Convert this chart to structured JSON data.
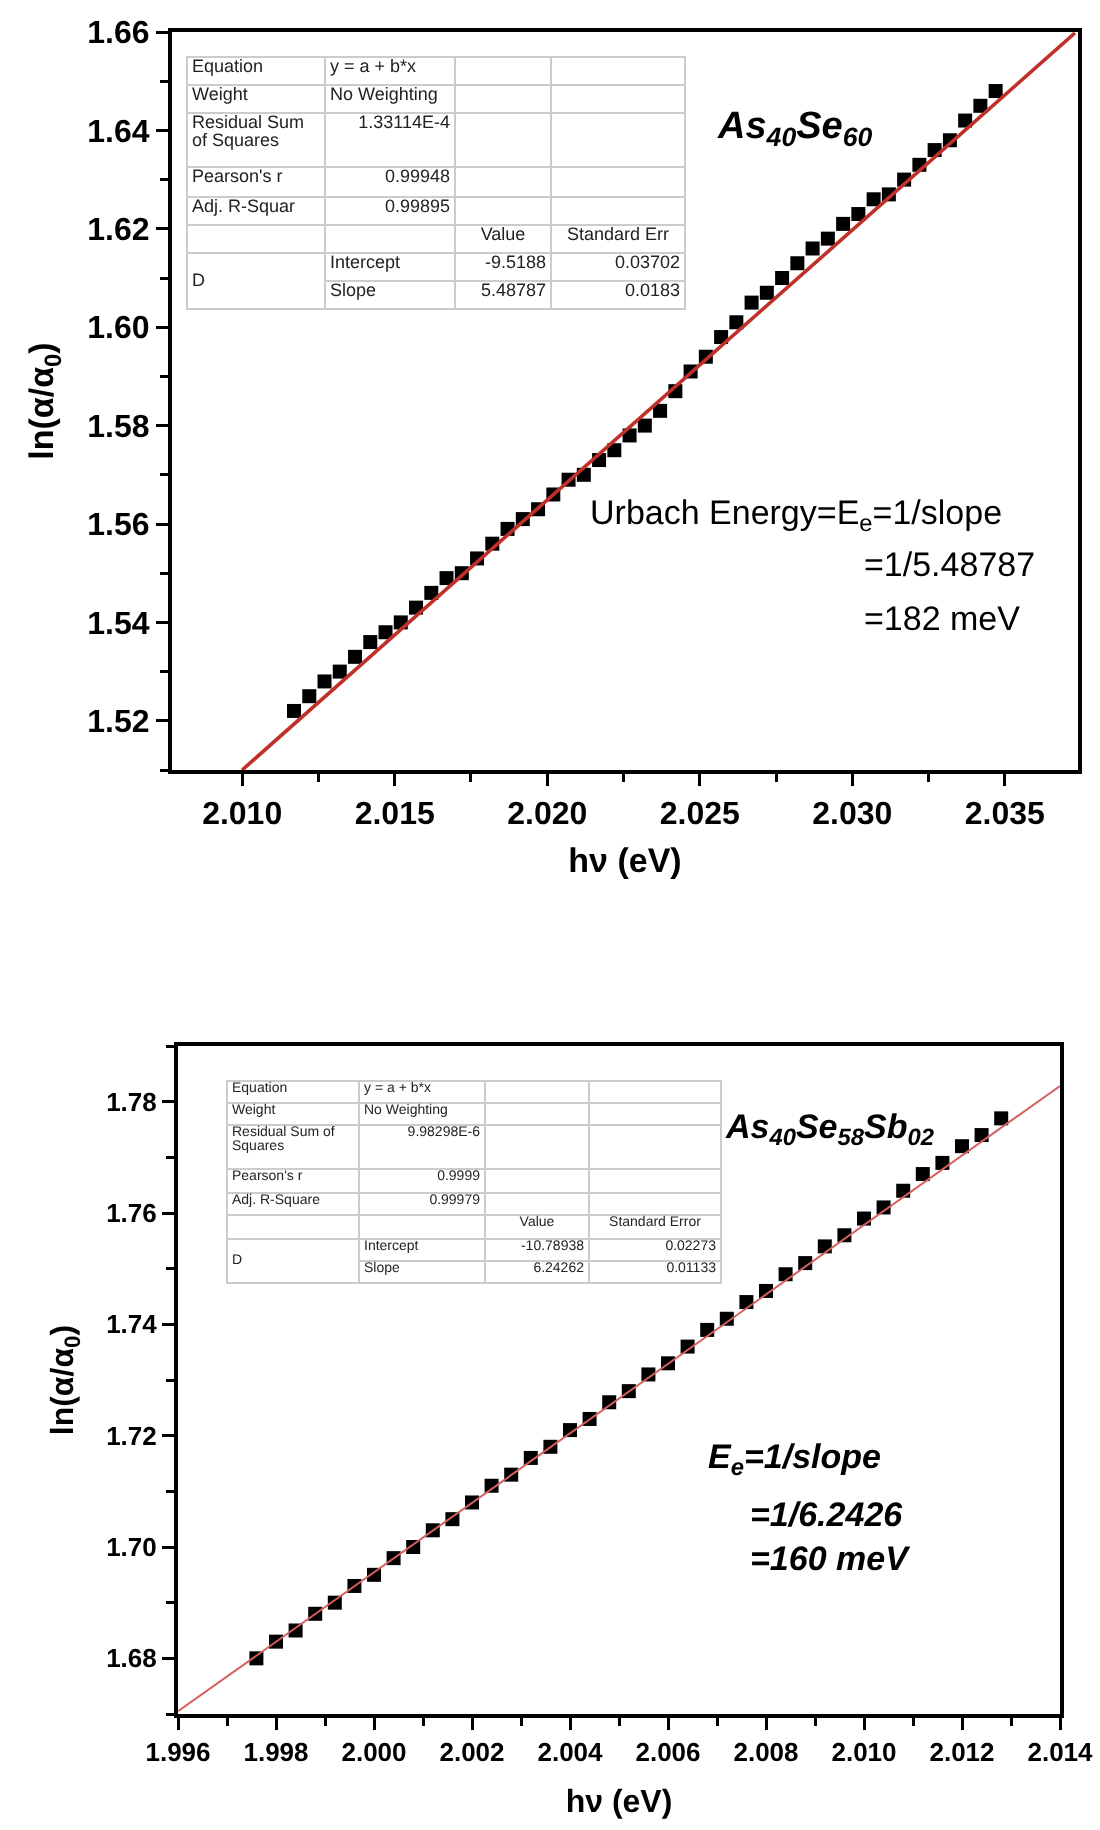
{
  "chart_data": [
    {
      "type": "scatter",
      "xlabel": "hν (eV)",
      "ylabel": "ln(α/α$_{0}$)",
      "xlim": [
        2.0077,
        2.0374
      ],
      "ylim": [
        1.51,
        1.66
      ],
      "xticks": [
        {
          "value": 2.01,
          "label": "2.010"
        },
        {
          "value": 2.015,
          "label": "2.015"
        },
        {
          "value": 2.02,
          "label": "2.020"
        },
        {
          "value": 2.025,
          "label": "2.025"
        },
        {
          "value": 2.03,
          "label": "2.030"
        },
        {
          "value": 2.035,
          "label": "2.035"
        }
      ],
      "yticks": [
        1.52,
        {
          "value": 1.54,
          "label": "1.54"
        },
        1.56,
        1.58,
        {
          "value": 1.6,
          "label": "1.60"
        },
        1.62,
        1.64,
        1.66
      ],
      "grid": false,
      "annotations": [
        "Equation",
        "y = a + b*x",
        "Weight",
        "No Weighting",
        "Residual Sum of Squares",
        "1.33114E-4",
        "Pearson's r",
        "0.99948",
        "Adj. R-Squar",
        "0.99895",
        "Value",
        "Standard Err",
        "D",
        "Intercept",
        "-9.5188",
        "0.03702",
        "Slope",
        "5.48787",
        "0.0183",
        "As$_{40}$Se$_{60}$",
        "Urbach Energy=E$_{e}$=1/slope",
        "=1/5.48787",
        "=182 meV"
      ],
      "series": [
        {
          "type": "scatter",
          "color": "#000000",
          "marker": "square",
          "x": [
            2.0117,
            2.0122,
            2.0127,
            2.0132,
            2.0137,
            2.0142,
            2.0147,
            2.0152,
            2.0157,
            2.0162,
            2.0167,
            2.0172,
            2.0177,
            2.0182,
            2.0187,
            2.0192,
            2.0197,
            2.0202,
            2.0207,
            2.0212,
            2.0217,
            2.0222,
            2.0227,
            2.0232,
            2.0237,
            2.0242,
            2.0247,
            2.0252,
            2.0257,
            2.0262,
            2.0267,
            2.0272,
            2.0277,
            2.0282,
            2.0287,
            2.0292,
            2.0297,
            2.0302,
            2.0307,
            2.0312,
            2.0317,
            2.0322,
            2.0327,
            2.0332,
            2.0337,
            2.0342,
            2.0347
          ],
          "values": [
            1.522,
            1.525,
            1.528,
            1.53,
            1.533,
            1.536,
            1.538,
            1.54,
            1.543,
            1.546,
            1.549,
            1.55,
            1.553,
            1.556,
            1.559,
            1.561,
            1.563,
            1.566,
            1.569,
            1.57,
            1.573,
            1.575,
            1.578,
            1.58,
            1.583,
            1.587,
            1.591,
            1.594,
            1.598,
            1.601,
            1.605,
            1.607,
            1.61,
            1.613,
            1.616,
            1.618,
            1.621,
            1.623,
            1.626,
            1.627,
            1.63,
            1.633,
            1.636,
            1.638,
            1.642,
            1.645,
            1.648
          ]
        },
        {
          "type": "line",
          "color": "#c0302a",
          "marker": "none",
          "x": [
            2.01,
            2.0373
          ],
          "values": [
            1.51,
            1.6598
          ]
        }
      ]
    },
    {
      "type": "scatter",
      "xlabel": "hν (eV)",
      "ylabel": "ln(α/α$_{0}$)",
      "xlim": [
        1.996,
        2.014
      ],
      "ylim": [
        1.67,
        1.79
      ],
      "xticks": [
        1.996,
        1.998,
        {
          "value": 2.0,
          "label": "2.000"
        },
        2.002,
        2.004,
        2.006,
        2.008,
        {
          "value": 2.01,
          "label": "2.010"
        },
        2.012,
        2.014
      ],
      "yticks": [
        1.68,
        {
          "value": 1.7,
          "label": "1.70"
        },
        1.72,
        1.74,
        1.76,
        1.78
      ],
      "grid": false,
      "annotations": [
        "Equation",
        "y = a + b*x",
        "Weight",
        "No Weighting",
        "Residual Sum of Squares",
        "9.98298E-6",
        "Pearson's r",
        "0.9999",
        "Adj. R-Square",
        "0.99979",
        "Value",
        "Standard Error",
        "D",
        "Intercept",
        "-10.78938",
        "0.02273",
        "Slope",
        "6.24262",
        "0.01133",
        "As$_{40}$Se$_{58}$Sb$_{02}$",
        "E$_{e}$=1/slope",
        "=1/6.2426",
        "=160 meV"
      ],
      "series": [
        {
          "type": "scatter",
          "color": "#000000",
          "marker": "square",
          "x": [
            1.9976,
            1.998,
            1.9984,
            1.9988,
            1.9992,
            1.9996,
            2.0,
            2.0004,
            2.0008,
            2.0012,
            2.0016,
            2.002,
            2.0024,
            2.0028,
            2.0032,
            2.0036,
            2.004,
            2.0044,
            2.0048,
            2.0052,
            2.0056,
            2.006,
            2.0064,
            2.0068,
            2.0072,
            2.0076,
            2.008,
            2.0084,
            2.0088,
            2.0092,
            2.0096,
            2.01,
            2.0104,
            2.0108,
            2.0112,
            2.0116,
            2.012,
            2.0124,
            2.0128
          ],
          "values": [
            1.68,
            1.683,
            1.685,
            1.688,
            1.69,
            1.693,
            1.695,
            1.698,
            1.7,
            1.703,
            1.705,
            1.708,
            1.711,
            1.713,
            1.716,
            1.718,
            1.721,
            1.723,
            1.726,
            1.728,
            1.731,
            1.733,
            1.736,
            1.739,
            1.741,
            1.744,
            1.746,
            1.749,
            1.751,
            1.754,
            1.756,
            1.759,
            1.761,
            1.764,
            1.767,
            1.769,
            1.772,
            1.774,
            1.777
          ]
        },
        {
          "type": "line",
          "color": "#d46060",
          "marker": "none",
          "x": [
            1.996,
            2.014
          ],
          "values": [
            1.6705,
            1.7828
          ]
        }
      ]
    }
  ]
}
